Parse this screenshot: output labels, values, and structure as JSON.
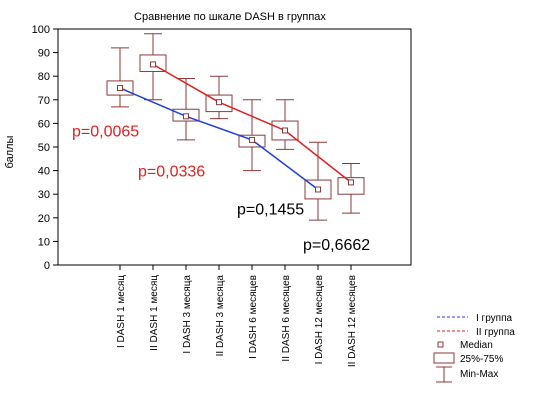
{
  "chart_data": {
    "type": "boxplot",
    "title": "Сравнение по шкале  DASH в группах",
    "ylabel": "баллы",
    "xlabel": "",
    "ylim": [
      0,
      100
    ],
    "yticks": [
      0,
      10,
      20,
      30,
      40,
      50,
      60,
      70,
      80,
      90,
      100
    ],
    "grid": false,
    "categories": [
      "I DASH 1 месяц",
      "II DASH 1 месяц",
      "I DASH 3 месяца",
      "II DASH 3 месяца",
      "I DASH 6 месяцев",
      "II DASH 6 месяцев",
      "I DASH 12 месяцев",
      "II DASH 12 месяцев"
    ],
    "boxes": [
      {
        "median": 75,
        "q1": 72,
        "q3": 78,
        "min": 67,
        "max": 92
      },
      {
        "median": 85,
        "q1": 82,
        "q3": 89,
        "min": 70,
        "max": 98
      },
      {
        "median": 63,
        "q1": 61,
        "q3": 66,
        "min": 53,
        "max": 79
      },
      {
        "median": 69,
        "q1": 65,
        "q3": 72,
        "min": 62,
        "max": 80
      },
      {
        "median": 53,
        "q1": 50,
        "q3": 55,
        "min": 40,
        "max": 70
      },
      {
        "median": 57,
        "q1": 53,
        "q3": 61,
        "min": 49,
        "max": 70
      },
      {
        "median": 32,
        "q1": 28,
        "q3": 36,
        "min": 19,
        "max": 52
      },
      {
        "median": 35,
        "q1": 30,
        "q3": 37,
        "min": 22,
        "max": 43
      }
    ],
    "series": [
      {
        "name": "I группа",
        "color": "#1f3fd8",
        "points": [
          0,
          2,
          4,
          6
        ],
        "values": [
          75,
          63,
          53,
          32
        ]
      },
      {
        "name": "II группа",
        "color": "#e02020",
        "points": [
          1,
          3,
          5,
          7
        ],
        "values": [
          85,
          69,
          57,
          35
        ]
      }
    ],
    "box_color": "#8b3a3a",
    "legend_position": "bottom-right",
    "legend": {
      "series1": "I группа",
      "series2": "II группа",
      "median": "Median",
      "box": "25%-75%",
      "whisker": "Min-Max"
    },
    "annotations": [
      {
        "text": "p=0,0065",
        "color": "#e02020",
        "x": 0,
        "y": 57
      },
      {
        "text": "p=0,0336",
        "color": "#e02020",
        "x": 2,
        "y": 40
      },
      {
        "text": "p=0,1455",
        "color": "#000000",
        "x": 5,
        "y": 24
      },
      {
        "text": "p=0,6662",
        "color": "#000000",
        "x": 7,
        "y": 9
      }
    ]
  }
}
